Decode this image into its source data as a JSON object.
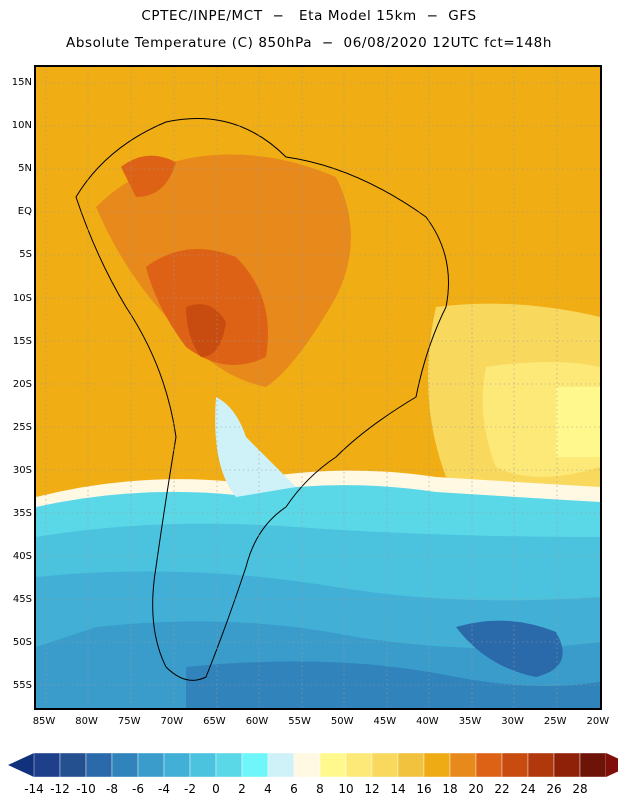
{
  "title_line1": "CPTEC/INPE/MCT  −   Eta Model 15km  −  GFS",
  "title_line2": "Absolute Temperature (C) 850hPa  −  06/08/2020 12UTC fct=148h",
  "lat_labels": [
    "15N",
    "10N",
    "5N",
    "EQ",
    "5S",
    "10S",
    "15S",
    "20S",
    "25S",
    "30S",
    "35S",
    "40S",
    "45S",
    "50S",
    "55S"
  ],
  "lon_labels": [
    "85W",
    "80W",
    "75W",
    "70W",
    "65W",
    "60W",
    "55W",
    "50W",
    "45W",
    "40W",
    "35W",
    "30W",
    "25W",
    "20W"
  ],
  "colorbar": {
    "labels": [
      "-14",
      "-12",
      "-10",
      "-8",
      "-6",
      "-4",
      "-2",
      "0",
      "2",
      "4",
      "6",
      "8",
      "10",
      "12",
      "14",
      "16",
      "18",
      "20",
      "22",
      "24",
      "26",
      "28"
    ],
    "colors": [
      "#1e3f8a",
      "#24508f",
      "#2a6aaa",
      "#3083bb",
      "#3a9ccb",
      "#42b0d6",
      "#4bc3df",
      "#5bd8e8",
      "#6ff6fb",
      "#cff1f8",
      "#fff8e3",
      "#fff98d",
      "#fde978",
      "#f8d95d",
      "#f1c23d",
      "#efab13",
      "#e8891c",
      "#de6215",
      "#c84c10",
      "#b0380c",
      "#8f2108",
      "#6e1307"
    ],
    "under_color": "#12317c",
    "over_color": "#800e0a"
  }
}
